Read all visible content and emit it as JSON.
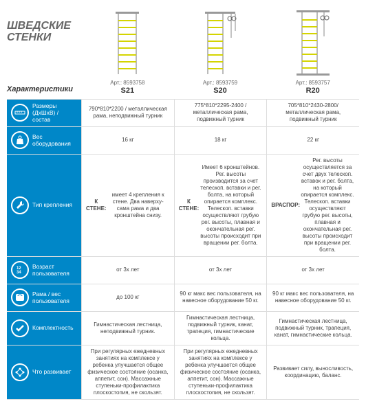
{
  "title_line1": "ШВЕДСКИЕ",
  "title_line2": "СТЕНКИ",
  "header_label": "Характеристики",
  "colors": {
    "brand": "#0087c8",
    "border": "#ddd",
    "text": "#444",
    "title": "#666"
  },
  "products": [
    {
      "art": "Арт.: 8593758",
      "model": "S21",
      "img_color": "#d4d400"
    },
    {
      "art": "Арт.: 8593759",
      "model": "S20",
      "img_color": "#d4d400"
    },
    {
      "art": "Арт.: 8593757",
      "model": "R20",
      "img_color": "#d4d400"
    }
  ],
  "rows": [
    {
      "icon": "ruler",
      "label": "Размеры (ДхШхВ) / состав",
      "cells": [
        "790*810*2200 / металлическая рама, неподвижный турник",
        "775*810*2295-2400 / металлическая рама, подвижный турник",
        "705*810*2430-2800/ металлическая рама, подвижный турник"
      ]
    },
    {
      "icon": "weight",
      "label": "Вес оборудования",
      "cells": [
        "16 кг",
        "18 кг",
        "22 кг"
      ]
    },
    {
      "icon": "wrench",
      "label": "Тип крепления",
      "cells": [
        "К СТЕНЕ: имеет 4 крепления к стене. Два наверху-сама рама и два кронштейна снизу.",
        "К СТЕНЕ: Имеет 6 кронштейнов. Рег. высоты производится за счет телескоп. вставки и рег. болта, на который опирается комплекс. Телескоп. вставки осуществляют грубую рег. высоты, плавная и окончательная рег. высоты происходит при вращении рег. болта.",
        "ВРАСПОР: Рег. высоты осуществляется за счет двух телескоп. вставок и рег. болта, на который опирается комплекс. Телескоп. вставки осуществляют грубую рег. высоты, плавная и окончательная рег. высоты происходит при вращении рег. болта."
      ]
    },
    {
      "icon": "age",
      "label": "Возраст пользователя",
      "cells": [
        "от 3х лет",
        "от 3х лет",
        "от 3х лет"
      ]
    },
    {
      "icon": "scale",
      "label": "Рама / вес пользователя",
      "cells": [
        "до 100 кг",
        "90 кг макс вес пользователя, на навесное оборудование 50 кг.",
        "90 кг макс вес пользователя, на навесное оборудование 50 кг."
      ]
    },
    {
      "icon": "check",
      "label": "Комплектность",
      "cells": [
        "Гимнастическая лестница, неподвижный турник.",
        "Гимнастическая лестница, подвижный турник, канат, трапеция, гимнастические кольца.",
        "Гимнастическая лестница, подвижный турник, трапеция, канат, гимнастические кольца."
      ]
    },
    {
      "icon": "body",
      "label": "Что развивает",
      "cells": [
        "При регулярных ежедневных занятиях на комплексе у ребенка улучшается общее физическое состояние (осанка, аппетит, сон). Массажные ступеньки-профилактика плоскостопия, не скользят.",
        "При регулярных ежедневных занятиях на комплексе у ребенка улучшается общее физическое состояние (осанка, аппетит, сон). Массажные ступеньки-профилактика плоскостопия, не скользят.",
        "Развивает силу, выносливость, координацию, баланс."
      ]
    }
  ]
}
